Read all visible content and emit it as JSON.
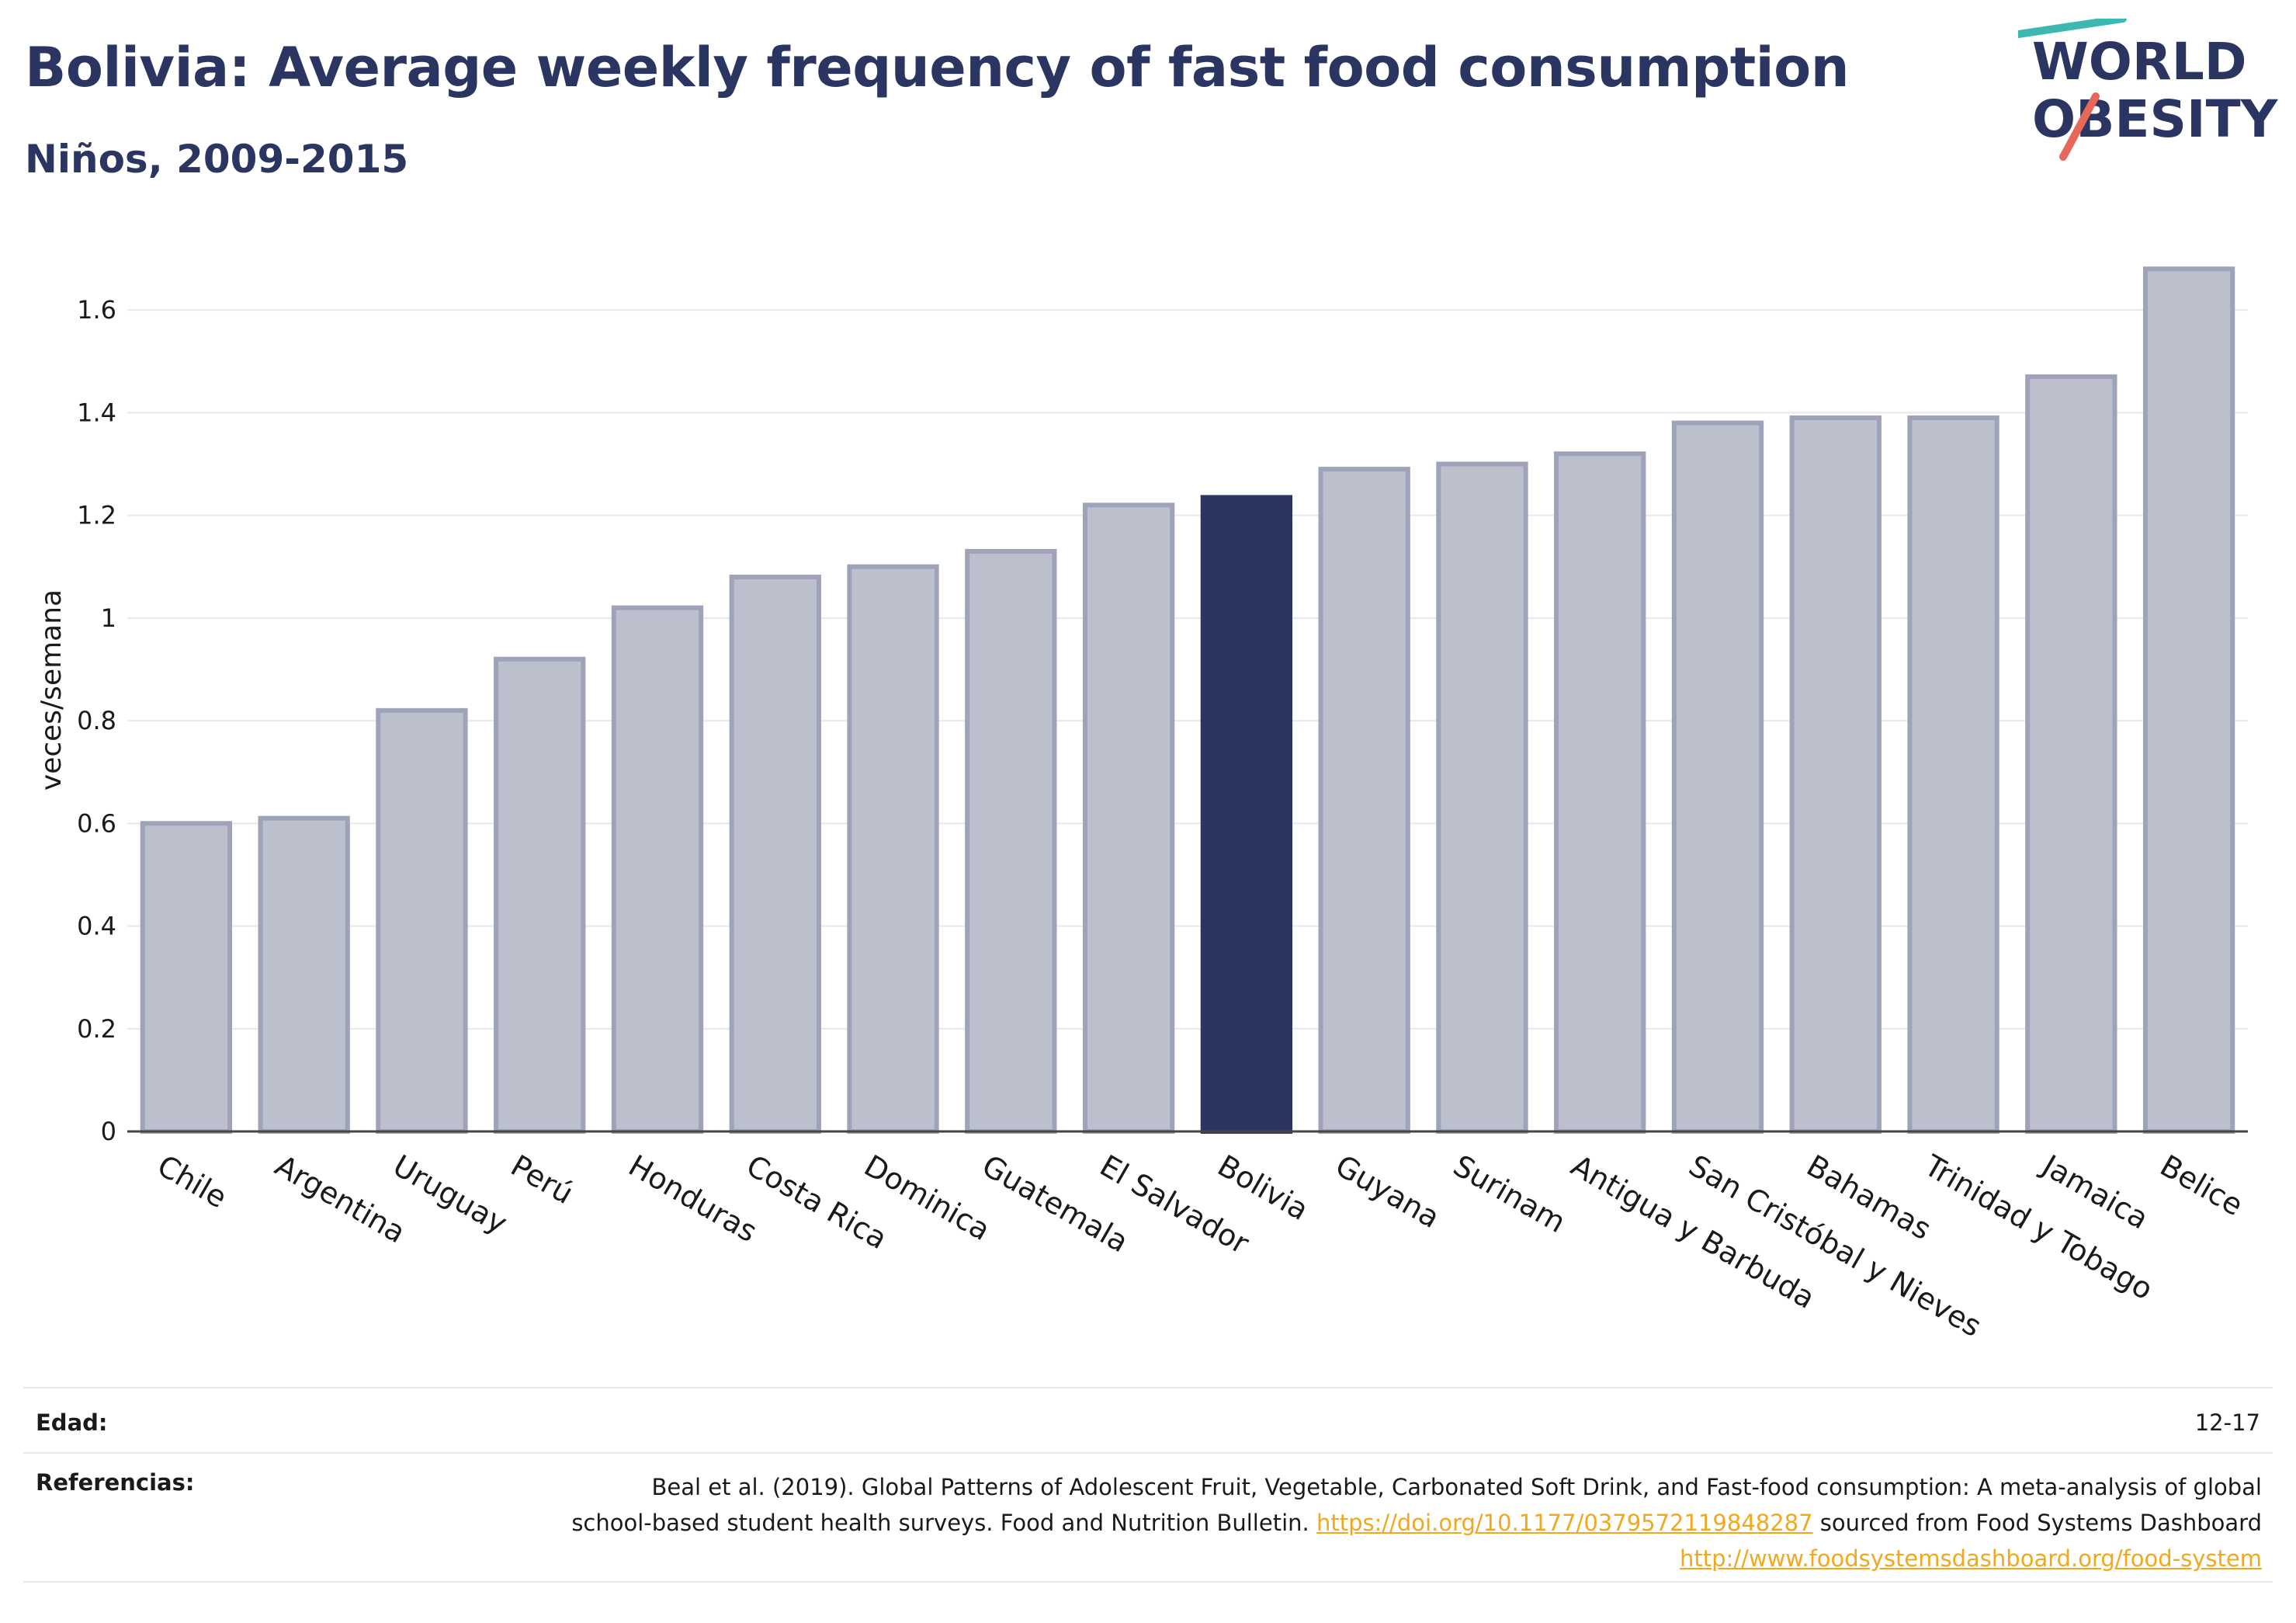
{
  "header": {
    "title": "Bolivia: Average weekly frequency of fast food consumption",
    "subtitle": "Niños, 2009-2015"
  },
  "logo": {
    "line1": "WORLD",
    "line2": "OBESITY"
  },
  "chart_data": {
    "type": "bar",
    "title": "Bolivia: Average weekly frequency of fast food consumption",
    "subtitle": "Niños, 2009-2015",
    "xlabel": "",
    "ylabel": "veces/semana",
    "ylim": [
      0,
      1.75
    ],
    "yticks": [
      0,
      0.2,
      0.4,
      0.6,
      0.8,
      1,
      1.2,
      1.4,
      1.6
    ],
    "ytick_labels": [
      "0",
      "0.2",
      "0.4",
      "0.6",
      "0.8",
      "1",
      "1.2",
      "1.4",
      "1.6"
    ],
    "categories": [
      "Chile",
      "Argentina",
      "Uruguay",
      "Perú",
      "Honduras",
      "Costa Rica",
      "Dominica",
      "Guatemala",
      "El Salvador",
      "Bolivia",
      "Guyana",
      "Surinam",
      "Antigua y Barbuda",
      "San Cristóbal y Nieves",
      "Bahamas",
      "Trinidad y Tobago",
      "Jamaica",
      "Belice"
    ],
    "values": [
      0.6,
      0.61,
      0.82,
      0.92,
      1.02,
      1.08,
      1.1,
      1.13,
      1.22,
      1.235,
      1.29,
      1.3,
      1.32,
      1.38,
      1.39,
      1.39,
      1.47,
      1.68
    ],
    "highlight": "Bolivia",
    "grid": true,
    "colors": {
      "bar": "#bcc0cd",
      "bar_border": "#9ea3b9",
      "highlight": "#2a3561"
    }
  },
  "footer": {
    "age_label": "Edad:",
    "age_value": "12-17",
    "ref_label": "Referencias:",
    "ref_text_1": "Beal et al. (2019). Global Patterns of Adolescent Fruit, Vegetable, Carbonated Soft Drink, and Fast-food consumption: A meta-analysis of global school-based student health surveys. Food and Nutrition Bulletin. ",
    "ref_link_1": "https://doi.org/10.1177/0379572119848287",
    "ref_text_2": " sourced from Food Systems Dashboard ",
    "ref_link_2": "http://www.foodsystemsdashboard.org/food-system"
  }
}
